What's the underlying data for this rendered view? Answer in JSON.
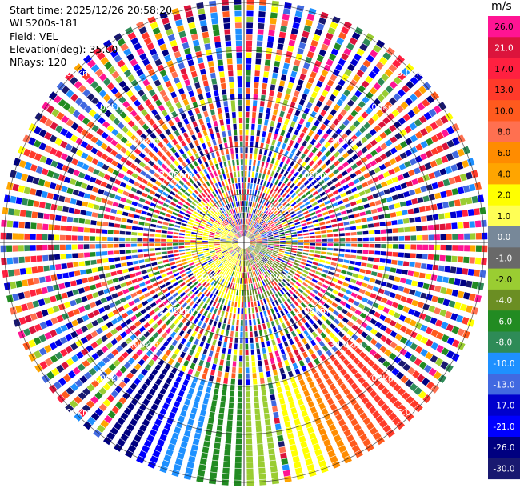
{
  "header": {
    "start_time": "Start time: 2025/12/26 20:58:20",
    "station": "WLS200s-181",
    "field": "Field: VEL",
    "elevation": "Elevation(deg): 35.00",
    "nrays": "NRays: 120"
  },
  "ppi": {
    "range_labels": [
      "1.00km",
      "2.00km",
      "3.00km",
      "4.00km",
      "5.00km"
    ],
    "rays": 120
  },
  "colorbar": {
    "units": "m/s",
    "bins": [
      {
        "label": "26.0",
        "color": "#ff1493"
      },
      {
        "label": "21.0",
        "color": "#dc143c"
      },
      {
        "label": "17.0",
        "color": "#ff2040"
      },
      {
        "label": "13.0",
        "color": "#ff3a2a"
      },
      {
        "label": "10.0",
        "color": "#ff5a1e"
      },
      {
        "label": "8.0",
        "color": "#ff7050"
      },
      {
        "label": "6.0",
        "color": "#ff8c00"
      },
      {
        "label": "4.0",
        "color": "#ffa500"
      },
      {
        "label": "2.0",
        "color": "#ffff00"
      },
      {
        "label": "1.0",
        "color": "#ffff55"
      },
      {
        "label": "0.0",
        "color": "#778899"
      },
      {
        "label": "-1.0",
        "color": "#696969"
      },
      {
        "label": "-2.0",
        "color": "#9acd32"
      },
      {
        "label": "-4.0",
        "color": "#6b8e23"
      },
      {
        "label": "-6.0",
        "color": "#228b22"
      },
      {
        "label": "-8.0",
        "color": "#2e8b57"
      },
      {
        "label": "-10.0",
        "color": "#1e90ff"
      },
      {
        "label": "-13.0",
        "color": "#4169e1"
      },
      {
        "label": "-17.0",
        "color": "#0000cd"
      },
      {
        "label": "-21.0",
        "color": "#0000ff"
      },
      {
        "label": "-26.0",
        "color": "#000080"
      },
      {
        "label": "-30.0",
        "color": "#191970"
      }
    ]
  }
}
